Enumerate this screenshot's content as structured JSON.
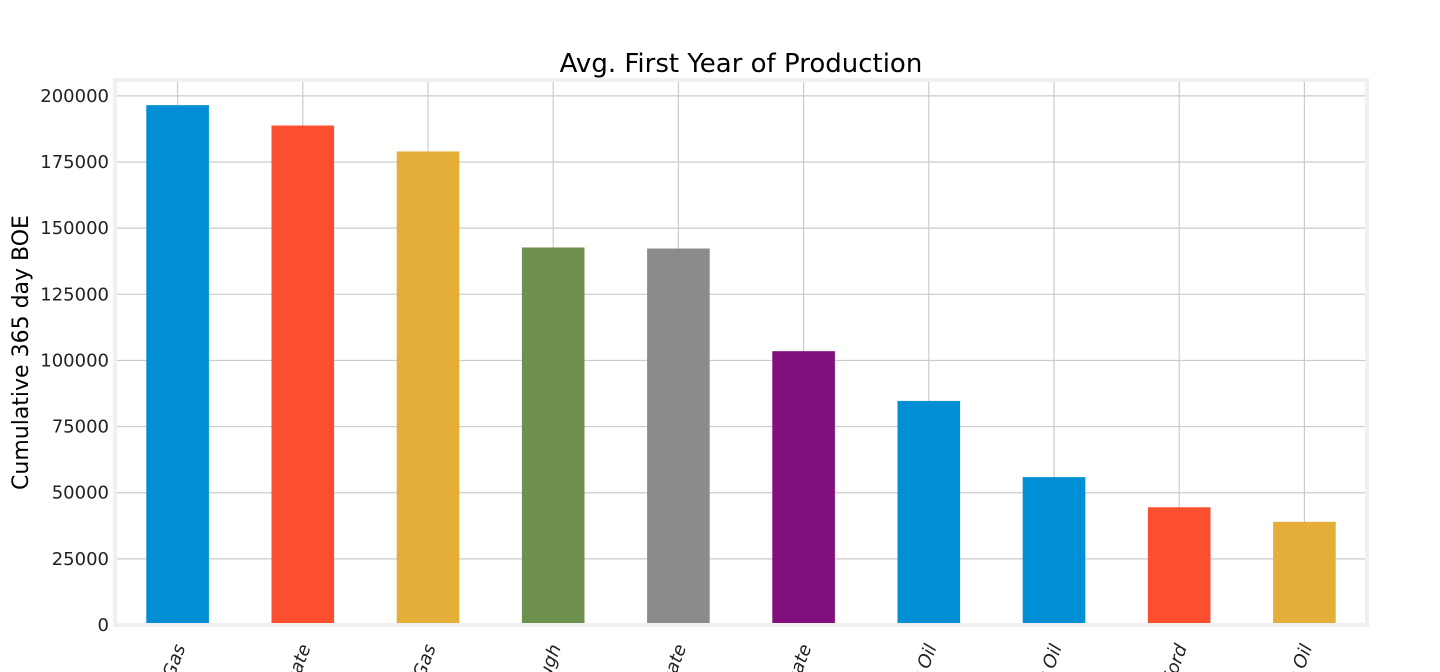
{
  "chart_data": {
    "type": "bar",
    "title": "Avg. First Year of Production",
    "xlabel": "",
    "ylabel": "Cumulative 365 day BOE",
    "ylim": [
      0,
      206000
    ],
    "yticks": [
      0,
      25000,
      50000,
      75000,
      100000,
      125000,
      150000,
      175000,
      200000
    ],
    "grid": true,
    "categories": [
      "Gas",
      "sate",
      "Gas",
      "ough",
      "sate",
      "sate",
      "k Oil",
      "t Oil",
      "Ford",
      "k Oil"
    ],
    "values": [
      196500,
      188800,
      179000,
      142700,
      142300,
      103500,
      84700,
      55900,
      44500,
      39000
    ],
    "colors": [
      "#008fd5",
      "#fc4f30",
      "#e5ae38",
      "#6d904f",
      "#8b8b8b",
      "#810f7c",
      "#008fd5",
      "#008fd5",
      "#fc4f30",
      "#e5ae38"
    ]
  }
}
